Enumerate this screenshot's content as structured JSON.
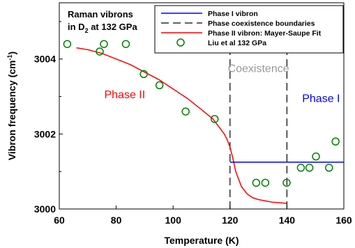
{
  "chart_data": {
    "type": "scatter",
    "title_line1": "Raman vibrons",
    "title_line2_prefix": "in D",
    "title_line2_sub": "2",
    "title_line2_suffix": " at 132 GPa",
    "xlabel": "Temperature (K)",
    "ylabel_prefix": "Vibron frequency (cm",
    "ylabel_sup": "-1",
    "ylabel_suffix": ")",
    "xlim": [
      60,
      160
    ],
    "ylim": [
      3000,
      3005.5
    ],
    "xticks": [
      60,
      80,
      100,
      120,
      140,
      160
    ],
    "yticks": [
      3000,
      3002,
      3004
    ],
    "xtick_labels": [
      "60",
      "80",
      "100",
      "120",
      "140",
      "160"
    ],
    "ytick_labels": [
      "3000",
      "3002",
      "3004"
    ],
    "grid": false,
    "legend_position": "top-right",
    "legend": [
      {
        "label": "Phase I vibron",
        "style": "solid",
        "color": "#0000ff"
      },
      {
        "label": "Phase coexistence boundaries",
        "style": "dashed",
        "color": "#000000"
      },
      {
        "label": "Phase II vibron: Mayer-Saupe Fit",
        "style": "solid",
        "color": "#ff0000"
      },
      {
        "label": "Liu et al 132 GPa",
        "style": "marker",
        "color": "#008000"
      }
    ],
    "series": [
      {
        "name": "Liu et al 132 GPa",
        "kind": "scatter",
        "color": "#008000",
        "x": [
          62.8,
          74.2,
          75.7,
          83.4,
          89.7,
          95.2,
          104.4,
          114.6,
          129.2,
          132.4,
          139.9,
          144.9,
          147.9,
          150.2,
          154.8,
          157.1
        ],
        "y": [
          3004.4,
          3004.2,
          3004.4,
          3004.4,
          3003.6,
          3003.3,
          3002.6,
          3002.4,
          3000.7,
          3000.7,
          3000.7,
          3001.1,
          3001.1,
          3001.4,
          3001.1,
          3001.8
        ]
      },
      {
        "name": "Phase II vibron: Mayer-Saupe Fit",
        "kind": "line",
        "color": "#ff0000",
        "x": [
          66,
          70,
          75,
          80,
          85,
          90,
          95,
          100,
          105,
          110,
          114,
          116,
          118,
          119,
          120,
          121,
          122,
          123,
          124,
          126,
          128,
          130,
          135,
          140
        ],
        "y": [
          3004.3,
          3004.25,
          3004.15,
          3004.0,
          3003.85,
          3003.65,
          3003.45,
          3003.2,
          3002.95,
          3002.65,
          3002.4,
          3002.2,
          3002.0,
          3001.85,
          3001.65,
          3001.35,
          3001.0,
          3000.8,
          3000.6,
          3000.4,
          3000.3,
          3000.25,
          3000.18,
          3000.15
        ]
      },
      {
        "name": "Phase I vibron",
        "kind": "line",
        "color": "#0000ff",
        "x": [
          120,
          160
        ],
        "y": [
          3001.25,
          3001.25
        ]
      }
    ],
    "boundaries": [
      120,
      140
    ],
    "annotations": [
      {
        "text": "Phase II",
        "x": 83,
        "y": 3002.95,
        "color": "#ff0000"
      },
      {
        "text": "Coexistence",
        "x": 130,
        "y": 3003.65,
        "color": "#999999"
      },
      {
        "text": "Phase I",
        "x": 152,
        "y": 3002.85,
        "color": "#0000ff"
      }
    ]
  }
}
